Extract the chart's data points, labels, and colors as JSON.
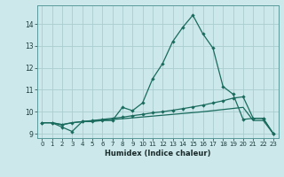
{
  "xlabel": "Humidex (Indice chaleur)",
  "x_ticks": [
    0,
    1,
    2,
    3,
    4,
    5,
    6,
    7,
    8,
    9,
    10,
    11,
    12,
    13,
    14,
    15,
    16,
    17,
    18,
    19,
    20,
    21,
    22,
    23
  ],
  "xlim": [
    -0.5,
    23.5
  ],
  "ylim": [
    8.8,
    14.85
  ],
  "y_ticks": [
    9,
    10,
    11,
    12,
    13,
    14
  ],
  "background_color": "#cce8ea",
  "grid_color": "#aacdd0",
  "line_color": "#1a6b5e",
  "curve1_x": [
    0,
    1,
    2,
    3,
    4,
    5,
    6,
    7,
    8,
    9,
    10,
    11,
    12,
    13,
    14,
    15,
    16,
    17,
    18,
    19,
    20,
    21,
    22,
    23
  ],
  "curve1_y": [
    9.5,
    9.5,
    9.3,
    9.1,
    9.55,
    9.55,
    9.6,
    9.6,
    10.2,
    10.05,
    10.4,
    11.5,
    12.2,
    13.2,
    13.85,
    14.4,
    13.55,
    12.9,
    11.15,
    10.8,
    9.65,
    9.7,
    9.7,
    9.0
  ],
  "curve2_x": [
    0,
    1,
    2,
    3,
    4,
    5,
    6,
    7,
    8,
    9,
    10,
    11,
    12,
    13,
    14,
    15,
    16,
    17,
    18,
    19,
    20,
    21,
    22,
    23
  ],
  "curve2_y": [
    9.5,
    9.5,
    9.4,
    9.5,
    9.55,
    9.6,
    9.65,
    9.7,
    9.75,
    9.82,
    9.88,
    9.95,
    10.0,
    10.07,
    10.14,
    10.22,
    10.3,
    10.4,
    10.5,
    10.62,
    10.68,
    9.7,
    9.7,
    9.0
  ],
  "curve3_x": [
    0,
    1,
    2,
    3,
    4,
    5,
    6,
    7,
    8,
    9,
    10,
    11,
    12,
    13,
    14,
    15,
    16,
    17,
    18,
    19,
    20,
    21,
    22,
    23
  ],
  "curve3_y": [
    9.5,
    9.5,
    9.42,
    9.5,
    9.55,
    9.58,
    9.62,
    9.65,
    9.68,
    9.72,
    9.76,
    9.8,
    9.84,
    9.88,
    9.92,
    9.96,
    10.0,
    10.05,
    10.1,
    10.15,
    10.2,
    9.6,
    9.6,
    9.0
  ]
}
